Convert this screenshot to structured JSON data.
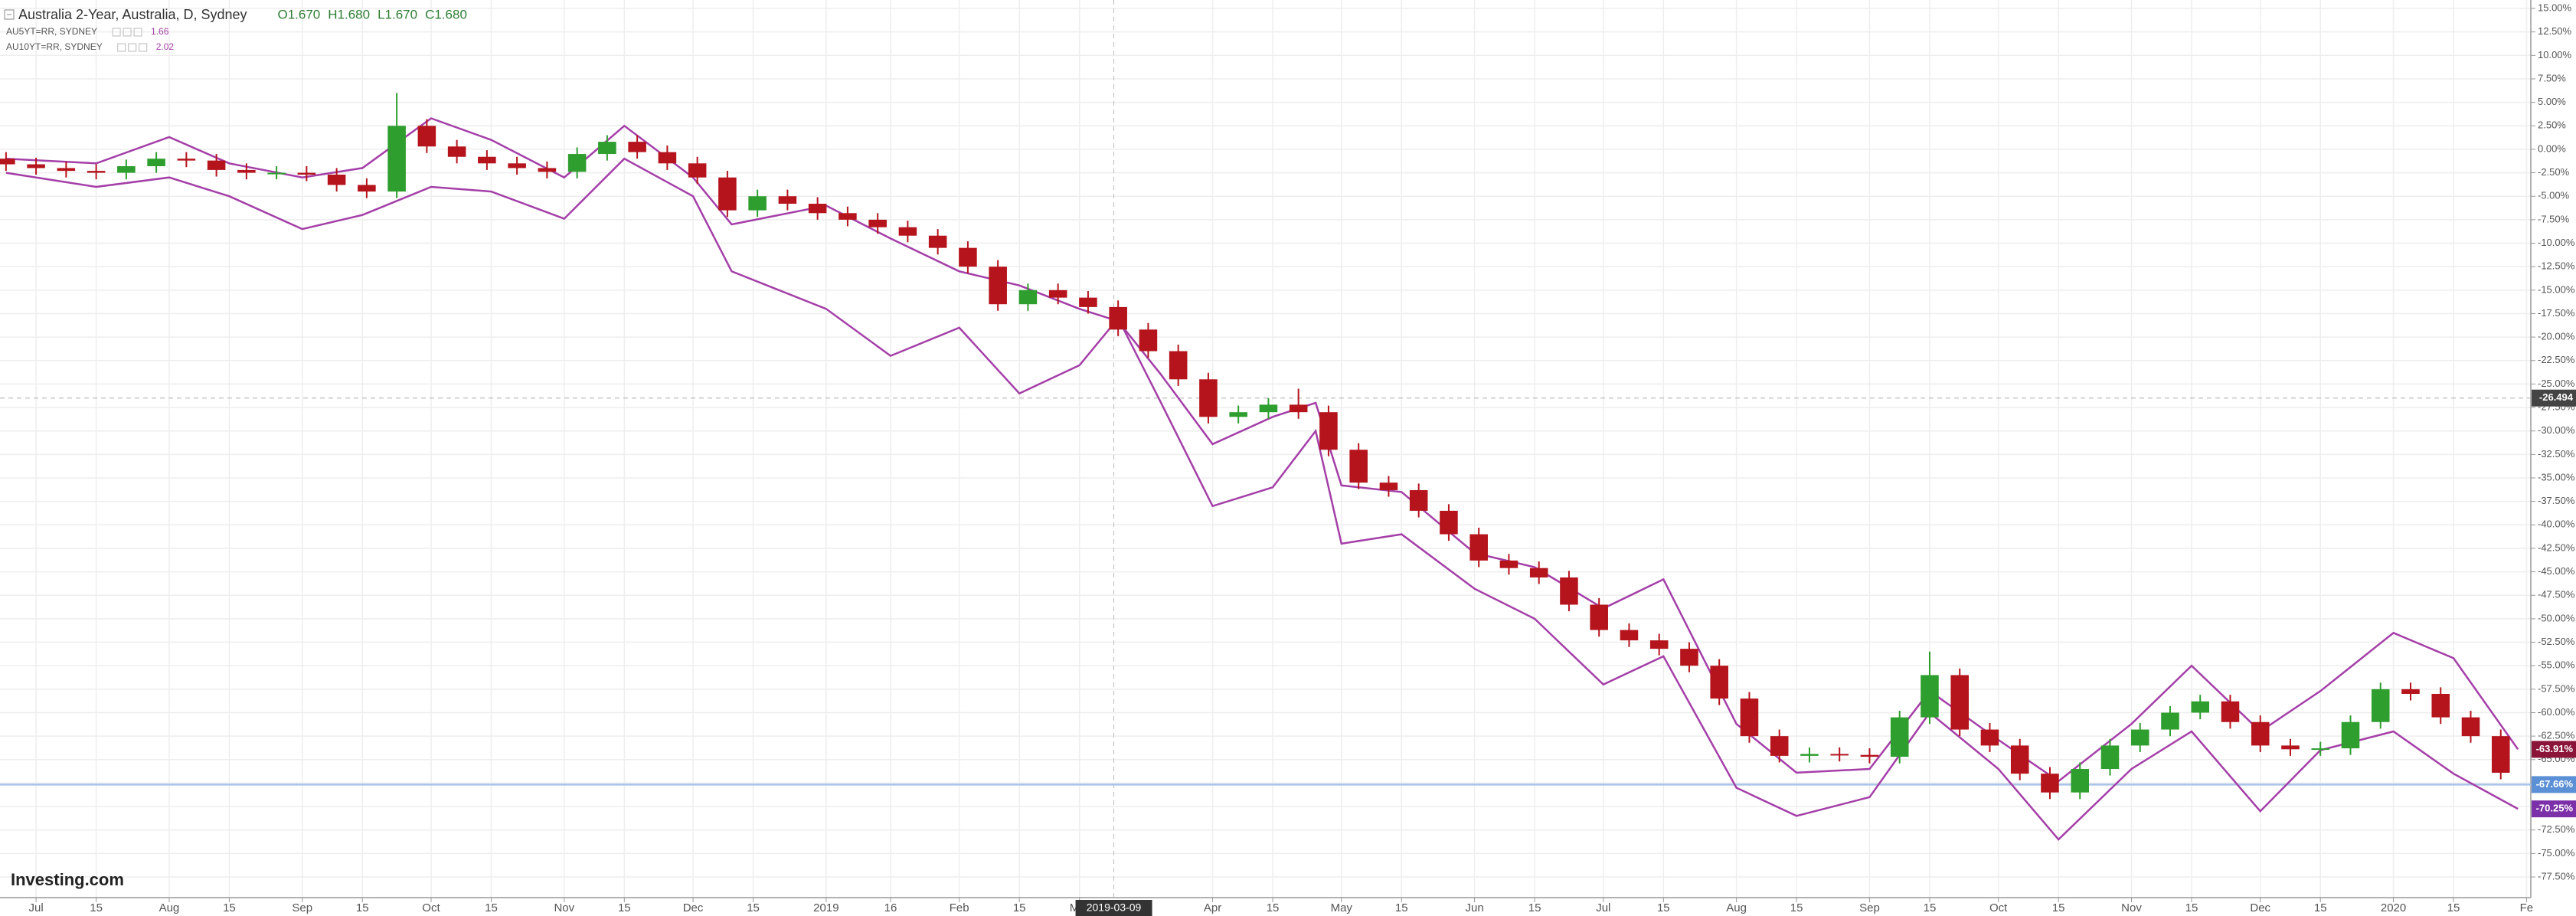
{
  "chart_data": {
    "type": "candlestick",
    "title": "Australia 2-Year, Australia, D, Sydney",
    "ohlc": [
      "O1.670",
      "H1.680",
      "L1.670",
      "C1.680"
    ],
    "up_color": "#2e9e2e",
    "down_color": "#b5141c",
    "x": [
      -7,
      0,
      7,
      14,
      21,
      28,
      35,
      42,
      49,
      56,
      63,
      70,
      77,
      84,
      91,
      98,
      105,
      112,
      119,
      126,
      133,
      140,
      147,
      154,
      161,
      168,
      175,
      182,
      189,
      196,
      203,
      210,
      217,
      224,
      231,
      238,
      245,
      252,
      259,
      266,
      273,
      280,
      287,
      294,
      301,
      308,
      315,
      322,
      329,
      336,
      343,
      350,
      357,
      364,
      371,
      378,
      385,
      392,
      399,
      406,
      413,
      420,
      427,
      434,
      441,
      448,
      455,
      462,
      469,
      476,
      483,
      490,
      497,
      504,
      511,
      518,
      525,
      532,
      539,
      546,
      553,
      560,
      567,
      574
    ],
    "opens": [
      -1.0,
      -1.6,
      -2.0,
      -2.3,
      -2.5,
      -1.8,
      -1.0,
      -1.2,
      -2.2,
      -2.5,
      -2.5,
      -2.7,
      -3.8,
      -4.5,
      2.5,
      0.3,
      -0.8,
      -1.5,
      -2.0,
      -2.4,
      -0.5,
      0.8,
      -0.3,
      -1.5,
      -3.0,
      -6.5,
      -5.0,
      -5.8,
      -6.8,
      -7.5,
      -8.3,
      -9.2,
      -10.5,
      -12.5,
      -16.5,
      -15.0,
      -15.8,
      -16.8,
      -19.2,
      -21.5,
      -24.5,
      -28.5,
      -28.0,
      -27.2,
      -28.0,
      -32.0,
      -35.5,
      -36.3,
      -38.5,
      -41.0,
      -43.8,
      -44.6,
      -45.6,
      -48.5,
      -51.2,
      -52.3,
      -53.2,
      -55.0,
      -58.5,
      -62.5,
      -64.6,
      -64.4,
      -64.5,
      -64.7,
      -60.5,
      -56.0,
      -61.8,
      -63.5,
      -66.5,
      -68.5,
      -66.0,
      -63.5,
      -61.8,
      -60.0,
      -58.8,
      -61.0,
      -63.5,
      -63.9,
      -63.8,
      -61.0,
      -57.5,
      -58.0,
      -60.5,
      -62.5
    ],
    "highs": [
      -0.3,
      -0.9,
      -1.3,
      -1.6,
      -1.1,
      -0.3,
      -0.3,
      -0.5,
      -1.5,
      -1.8,
      -1.8,
      -2.0,
      -3.1,
      6.0,
      3.2,
      1.0,
      -0.1,
      -0.8,
      -1.3,
      0.2,
      1.5,
      1.5,
      0.4,
      -0.8,
      -2.3,
      -4.3,
      -4.3,
      -5.1,
      -6.1,
      -6.8,
      -7.6,
      -8.5,
      -9.8,
      -11.8,
      -14.3,
      -14.3,
      -15.1,
      -16.1,
      -18.5,
      -20.8,
      -23.8,
      -27.3,
      -26.5,
      -25.5,
      -27.3,
      -31.3,
      -34.8,
      -35.6,
      -37.8,
      -40.3,
      -43.1,
      -43.9,
      -44.9,
      -47.8,
      -50.5,
      -51.6,
      -52.5,
      -54.3,
      -57.8,
      -61.8,
      -63.7,
      -63.7,
      -63.8,
      -59.8,
      -53.5,
      -55.3,
      -61.1,
      -62.8,
      -65.8,
      -65.3,
      -62.8,
      -61.1,
      -59.3,
      -58.1,
      -58.1,
      -60.3,
      -62.8,
      -63.1,
      -60.3,
      -56.8,
      -56.8,
      -57.3,
      -59.8,
      -61.8
    ],
    "lows": [
      -2.3,
      -2.7,
      -3.0,
      -3.2,
      -3.2,
      -2.5,
      -1.9,
      -2.9,
      -3.2,
      -3.2,
      -3.4,
      -4.5,
      -5.2,
      -5.2,
      -0.4,
      -1.5,
      -2.2,
      -2.7,
      -3.1,
      -3.1,
      -1.2,
      -1.0,
      -2.2,
      -3.7,
      -7.2,
      -7.2,
      -6.5,
      -7.5,
      -8.2,
      -9.0,
      -9.9,
      -11.2,
      -13.2,
      -17.2,
      -17.2,
      -16.5,
      -17.5,
      -19.9,
      -22.2,
      -25.2,
      -29.2,
      -29.2,
      -28.7,
      -28.7,
      -32.7,
      -36.2,
      -37.0,
      -39.2,
      -41.7,
      -44.5,
      -45.3,
      -46.3,
      -49.2,
      -51.9,
      -53.0,
      -53.9,
      -55.7,
      -59.2,
      -63.2,
      -65.3,
      -65.3,
      -65.2,
      -65.4,
      -65.4,
      -61.2,
      -62.5,
      -64.2,
      -67.2,
      -69.2,
      -69.2,
      -66.7,
      -64.2,
      -62.5,
      -60.7,
      -61.7,
      -64.2,
      -64.6,
      -64.6,
      -64.5,
      -61.7,
      -58.7,
      -61.2,
      -63.2,
      -67.1
    ],
    "closes": [
      -1.6,
      -2.0,
      -2.3,
      -2.5,
      -1.8,
      -1.0,
      -1.2,
      -2.2,
      -2.5,
      -2.5,
      -2.7,
      -3.8,
      -4.5,
      2.5,
      0.3,
      -0.8,
      -1.5,
      -2.0,
      -2.4,
      -0.5,
      0.8,
      -0.3,
      -1.5,
      -3.0,
      -6.5,
      -5.0,
      -5.8,
      -6.8,
      -7.5,
      -8.3,
      -9.2,
      -10.5,
      -12.5,
      -16.5,
      -15.0,
      -15.8,
      -16.8,
      -19.2,
      -21.5,
      -24.5,
      -28.5,
      -28.0,
      -27.2,
      -28.0,
      -32.0,
      -35.5,
      -36.3,
      -38.5,
      -41.0,
      -43.8,
      -44.6,
      -45.6,
      -48.5,
      -51.2,
      -52.3,
      -53.2,
      -55.0,
      -58.5,
      -62.5,
      -64.6,
      -64.4,
      -64.5,
      -64.7,
      -60.5,
      -56.0,
      -61.8,
      -63.5,
      -66.5,
      -68.5,
      -66.0,
      -63.5,
      -61.8,
      -60.0,
      -58.8,
      -61.0,
      -63.5,
      -63.9,
      -63.8,
      -61.0,
      -57.5,
      -58.0,
      -60.5,
      -62.5,
      -66.4
    ],
    "series": [
      {
        "name": "AU5YT=RR, SYDNEY",
        "legend_value": "1.66",
        "color": "#a43fa8",
        "x": [
          -7,
          14,
          31,
          45,
          62,
          76,
          92,
          106,
          123,
          137,
          153,
          162,
          184,
          199,
          215,
          229,
          243,
          252,
          262,
          274,
          288,
          298,
          304,
          318,
          335,
          349,
          365,
          379,
          396,
          410,
          427,
          441,
          457,
          471,
          488,
          502,
          518,
          532,
          549,
          563,
          578
        ],
        "values": [
          -1.0,
          -1.5,
          1.3,
          -1.5,
          -3.0,
          -2.0,
          3.3,
          1.0,
          -3.0,
          2.5,
          -3.0,
          -8.0,
          -6.0,
          -9.5,
          -13.0,
          -14.5,
          -17.0,
          -18.3,
          -24.0,
          -31.4,
          -28.5,
          -27.0,
          -35.8,
          -36.5,
          -43.0,
          -44.5,
          -48.9,
          -45.8,
          -61.2,
          -66.4,
          -66.0,
          -57.7,
          -62.9,
          -67.3,
          -61.2,
          -55.0,
          -62.0,
          -57.7,
          -51.5,
          -54.2,
          -63.9
        ]
      },
      {
        "name": "AU10YT=RR, SYDNEY",
        "legend_value": "2.02",
        "color": "#a43fa8",
        "x": [
          -7,
          14,
          31,
          45,
          62,
          76,
          92,
          106,
          123,
          137,
          153,
          162,
          184,
          199,
          215,
          229,
          243,
          252,
          262,
          274,
          288,
          298,
          304,
          318,
          335,
          349,
          365,
          379,
          396,
          410,
          427,
          441,
          457,
          471,
          488,
          502,
          518,
          532,
          549,
          563,
          578
        ],
        "values": [
          -2.5,
          -4.0,
          -3.0,
          -5.0,
          -8.5,
          -7.0,
          -4.0,
          -4.5,
          -7.4,
          -1.0,
          -5.0,
          -13.0,
          -17.0,
          -22.0,
          -19.0,
          -26.0,
          -23.0,
          -18.0,
          -27.0,
          -38.0,
          -36.0,
          -30.0,
          -42.0,
          -41.0,
          -46.8,
          -50.0,
          -57.0,
          -54.0,
          -68.0,
          -71.0,
          -69.0,
          -60.0,
          -66.0,
          -73.5,
          -66.0,
          -62.0,
          -70.5,
          -64.0,
          -62.0,
          -66.5,
          -70.25
        ]
      }
    ],
    "xlim": [
      -8.4,
      581
    ],
    "xticks": [
      {
        "value": 0,
        "label": "Jul"
      },
      {
        "value": 14,
        "label": "15"
      },
      {
        "value": 31,
        "label": "Aug"
      },
      {
        "value": 45,
        "label": "15"
      },
      {
        "value": 62,
        "label": "Sep"
      },
      {
        "value": 76,
        "label": "15"
      },
      {
        "value": 92,
        "label": "Oct"
      },
      {
        "value": 106,
        "label": "15"
      },
      {
        "value": 123,
        "label": "Nov"
      },
      {
        "value": 137,
        "label": "15"
      },
      {
        "value": 153,
        "label": "Dec"
      },
      {
        "value": 167,
        "label": "15"
      },
      {
        "value": 184,
        "label": "2019"
      },
      {
        "value": 199,
        "label": "16"
      },
      {
        "value": 215,
        "label": "Feb"
      },
      {
        "value": 229,
        "label": "15"
      },
      {
        "value": 243,
        "label": "Mar"
      },
      {
        "value": 274,
        "label": "Apr"
      },
      {
        "value": 288,
        "label": "15"
      },
      {
        "value": 304,
        "label": "May"
      },
      {
        "value": 318,
        "label": "15"
      },
      {
        "value": 335,
        "label": "Jun"
      },
      {
        "value": 349,
        "label": "15"
      },
      {
        "value": 365,
        "label": "Jul"
      },
      {
        "value": 379,
        "label": "15"
      },
      {
        "value": 396,
        "label": "Aug"
      },
      {
        "value": 410,
        "label": "15"
      },
      {
        "value": 427,
        "label": "Sep"
      },
      {
        "value": 441,
        "label": "15"
      },
      {
        "value": 457,
        "label": "Oct"
      },
      {
        "value": 471,
        "label": "15"
      },
      {
        "value": 488,
        "label": "Nov"
      },
      {
        "value": 502,
        "label": "15"
      },
      {
        "value": 518,
        "label": "Dec"
      },
      {
        "value": 532,
        "label": "15"
      },
      {
        "value": 549,
        "label": "2020"
      },
      {
        "value": 563,
        "label": "15"
      },
      {
        "value": 580,
        "label": "Fe"
      }
    ],
    "ylim": [
      -79.7,
      15.9
    ],
    "yticks": [
      {
        "value": 15,
        "label": "15.00%"
      },
      {
        "value": 12.5,
        "label": "12.50%"
      },
      {
        "value": 10,
        "label": "10.00%"
      },
      {
        "value": 7.5,
        "label": "7.50%"
      },
      {
        "value": 5,
        "label": "5.00%"
      },
      {
        "value": 2.5,
        "label": "2.50%"
      },
      {
        "value": 0,
        "label": "0.00%"
      },
      {
        "value": -2.5,
        "label": "-2.50%"
      },
      {
        "value": -5,
        "label": "-5.00%"
      },
      {
        "value": -7.5,
        "label": "-7.50%"
      },
      {
        "value": -10,
        "label": "-10.00%"
      },
      {
        "value": -12.5,
        "label": "-12.50%"
      },
      {
        "value": -15,
        "label": "-15.00%"
      },
      {
        "value": -17.5,
        "label": "-17.50%"
      },
      {
        "value": -20,
        "label": "-20.00%"
      },
      {
        "value": -22.5,
        "label": "-22.50%"
      },
      {
        "value": -25,
        "label": "-25.00%"
      },
      {
        "value": -27.5,
        "label": "-27.50%"
      },
      {
        "value": -30,
        "label": "-30.00%"
      },
      {
        "value": -32.5,
        "label": "-32.50%"
      },
      {
        "value": -35,
        "label": "-35.00%"
      },
      {
        "value": -37.5,
        "label": "-37.50%"
      },
      {
        "value": -40,
        "label": "-40.00%"
      },
      {
        "value": -42.5,
        "label": "-42.50%"
      },
      {
        "value": -45,
        "label": "-45.00%"
      },
      {
        "value": -47.5,
        "label": "-47.50%"
      },
      {
        "value": -50,
        "label": "-50.00%"
      },
      {
        "value": -52.5,
        "label": "-52.50%"
      },
      {
        "value": -55,
        "label": "-55.00%"
      },
      {
        "value": -57.5,
        "label": "-57.50%"
      },
      {
        "value": -60,
        "label": "-60.00%"
      },
      {
        "value": -62.5,
        "label": "-62.50%"
      },
      {
        "value": -65,
        "label": "-65.00%"
      },
      {
        "value": -67.5,
        "label": "-67.50%"
      },
      {
        "value": -70,
        "label": "-70.00%"
      },
      {
        "value": -72.5,
        "label": "-72.50%"
      },
      {
        "value": -75,
        "label": "-75.00%"
      },
      {
        "value": -77.5,
        "label": "-77.50%"
      }
    ],
    "grid": true,
    "crosshair": {
      "x": 251,
      "label": "2019-03-09",
      "y": -26.494,
      "y_label": "-26.494"
    },
    "markers": [
      {
        "value": -63.91,
        "label": "-63.91%",
        "color": "#8b1538",
        "line": false
      },
      {
        "value": -67.66,
        "label": "-67.66%",
        "color": "#5b8fd6",
        "line": true
      },
      {
        "value": -70.25,
        "label": "-70.25%",
        "color": "#7b2fa8",
        "line": false
      }
    ],
    "logo": "Investing.com"
  }
}
